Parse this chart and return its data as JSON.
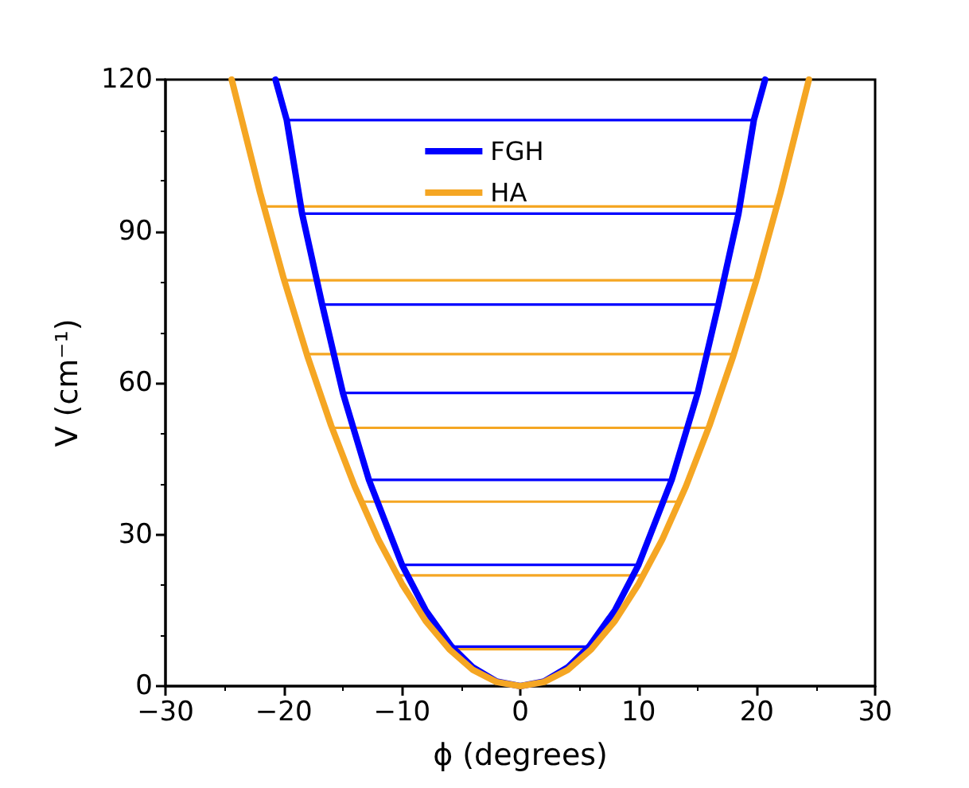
{
  "chart_data": {
    "type": "line",
    "xlabel": "ϕ (degrees)",
    "ylabel": "V (cm⁻¹)",
    "xlim": [
      -30,
      30
    ],
    "xticks": [
      -30,
      -20,
      -10,
      0,
      10,
      20,
      30
    ],
    "ylim": [
      0,
      120
    ],
    "yticks": [
      0,
      30,
      60,
      90,
      120
    ],
    "legend": "top",
    "grid": false,
    "marker": "none",
    "line_style": "solid",
    "series": [
      {
        "name": "FGH",
        "color": "#0000ff",
        "x": [
          -20.7,
          -19.75,
          -18.45,
          -16.75,
          -15,
          -12.8,
          -10,
          -8,
          -5.8,
          -4,
          -2,
          0,
          2,
          4,
          5.8,
          8,
          10,
          12.8,
          15,
          16.75,
          18.45,
          19.75,
          20.7
        ],
        "values": [
          120,
          112,
          93.5,
          75.5,
          58,
          40.8,
          24,
          15,
          7.8,
          3.7,
          0.9,
          0,
          0.9,
          3.7,
          7.8,
          15,
          24,
          40.8,
          58,
          75.5,
          93.5,
          112,
          120
        ]
      },
      {
        "name": "HA",
        "color": "#f5a623",
        "x": [
          -24.4,
          -22,
          -20,
          -18,
          -16,
          -14,
          -12,
          -10,
          -8,
          -6,
          -4,
          -2,
          0,
          2,
          4,
          6,
          8,
          10,
          12,
          14,
          16,
          18,
          20,
          22,
          24.4
        ],
        "values": [
          120,
          97.6,
          80.6,
          65.3,
          51.6,
          39.5,
          29.0,
          20.2,
          12.9,
          7.3,
          3.2,
          0.8,
          0,
          0.8,
          3.2,
          7.3,
          12.9,
          20.2,
          29.0,
          39.5,
          51.6,
          65.3,
          80.6,
          97.6,
          120
        ]
      },
      {
        "color": "#0000ff",
        "x": [
          -5.8,
          5.8
        ],
        "values": [
          7.8,
          7.8
        ]
      },
      {
        "color": "#0000ff",
        "x": [
          -10,
          10
        ],
        "values": [
          24,
          24
        ]
      },
      {
        "color": "#0000ff",
        "x": [
          -12.8,
          12.8
        ],
        "values": [
          40.8,
          40.8
        ]
      },
      {
        "color": "#0000ff",
        "x": [
          -15,
          15
        ],
        "values": [
          58,
          58
        ]
      },
      {
        "color": "#0000ff",
        "x": [
          -16.75,
          16.75
        ],
        "values": [
          75.5,
          75.5
        ]
      },
      {
        "color": "#0000ff",
        "x": [
          -18.45,
          18.45
        ],
        "values": [
          93.5,
          93.5
        ]
      },
      {
        "color": "#0000ff",
        "x": [
          -19.75,
          19.75
        ],
        "values": [
          112,
          112
        ]
      },
      {
        "color": "#f5a623",
        "x": [
          -6,
          6
        ],
        "values": [
          7.3,
          7.3
        ]
      },
      {
        "color": "#f5a623",
        "x": [
          -10.4,
          10.4
        ],
        "values": [
          21.9,
          21.9
        ]
      },
      {
        "color": "#f5a623",
        "x": [
          -13.5,
          13.5
        ],
        "values": [
          36.5,
          36.5
        ]
      },
      {
        "color": "#f5a623",
        "x": [
          -15.9,
          15.9
        ],
        "values": [
          51.1,
          51.1
        ]
      },
      {
        "color": "#f5a623",
        "x": [
          -18.05,
          18.05
        ],
        "values": [
          65.7,
          65.7
        ]
      },
      {
        "color": "#f5a623",
        "x": [
          -19.95,
          19.95
        ],
        "values": [
          80.3,
          80.3
        ]
      },
      {
        "color": "#f5a623",
        "x": [
          -21.7,
          21.7
        ],
        "values": [
          94.9,
          94.9
        ]
      }
    ]
  }
}
